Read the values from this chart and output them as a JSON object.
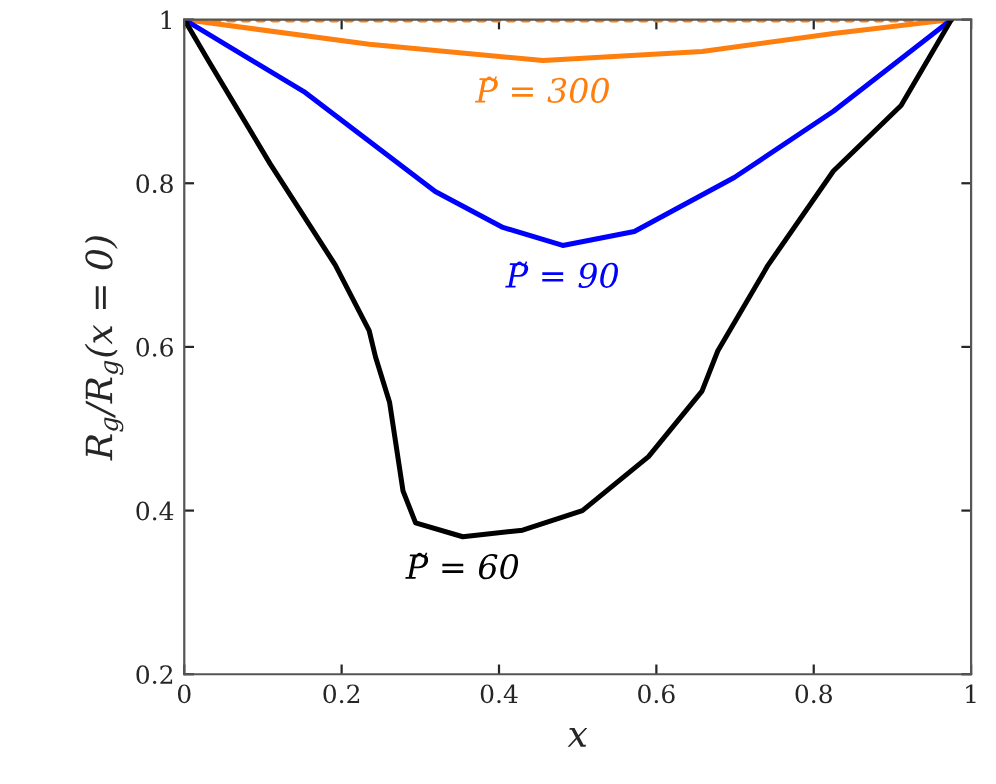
{
  "chart_data": {
    "type": "line",
    "xlabel": "x",
    "ylabel": "R$_{g}$/R$_{g}$(x = 0)",
    "xlim": [
      0,
      1
    ],
    "ylim": [
      0.2,
      1.0
    ],
    "xticks": [
      {
        "value": 0,
        "label": "0"
      },
      {
        "value": 0.2,
        "label": "0.2"
      },
      {
        "value": 0.4,
        "label": "0.4"
      },
      {
        "value": 0.6,
        "label": "0.6"
      },
      {
        "value": 0.8,
        "label": "0.8"
      },
      {
        "value": 1,
        "label": "1"
      }
    ],
    "yticks": [
      {
        "value": 0.2,
        "label": "0.2"
      },
      {
        "value": 0.4,
        "label": "0.4"
      },
      {
        "value": 0.6,
        "label": "0.6"
      },
      {
        "value": 0.8,
        "label": "0.8"
      },
      {
        "value": 1,
        "label": "1"
      }
    ],
    "grid": false,
    "legend": false,
    "marker": "none",
    "line_style": "solid",
    "series": [
      {
        "x": [
          0,
          0.975
        ],
        "values": [
          1,
          1
        ],
        "color": "#ff7f0e",
        "line_style": "dotted"
      },
      {
        "name": "P̃ = 300",
        "color": "#ff7f0e",
        "x": [
          0,
          0.235,
          0.456,
          0.658,
          0.825,
          0.975
        ],
        "values": [
          1,
          0.97,
          0.95,
          0.961,
          0.983,
          1
        ]
      },
      {
        "name": "P̃ = 90",
        "color": "#0000ff",
        "x": [
          0,
          0.152,
          0.319,
          0.405,
          0.481,
          0.572,
          0.699,
          0.825,
          0.975
        ],
        "values": [
          1,
          0.912,
          0.79,
          0.746,
          0.724,
          0.741,
          0.807,
          0.888,
          1
        ]
      },
      {
        "name": "P̃ = 60",
        "color": "#000000",
        "x": [
          0,
          0.033,
          0.109,
          0.192,
          0.235,
          0.243,
          0.261,
          0.278,
          0.294,
          0.354,
          0.43,
          0.506,
          0.59,
          0.658,
          0.678,
          0.742,
          0.825,
          0.911,
          0.975
        ],
        "values": [
          1,
          0.946,
          0.824,
          0.7,
          0.62,
          0.588,
          0.532,
          0.424,
          0.385,
          0.368,
          0.376,
          0.4,
          0.466,
          0.546,
          0.595,
          0.7,
          0.815,
          0.895,
          1
        ]
      }
    ]
  }
}
